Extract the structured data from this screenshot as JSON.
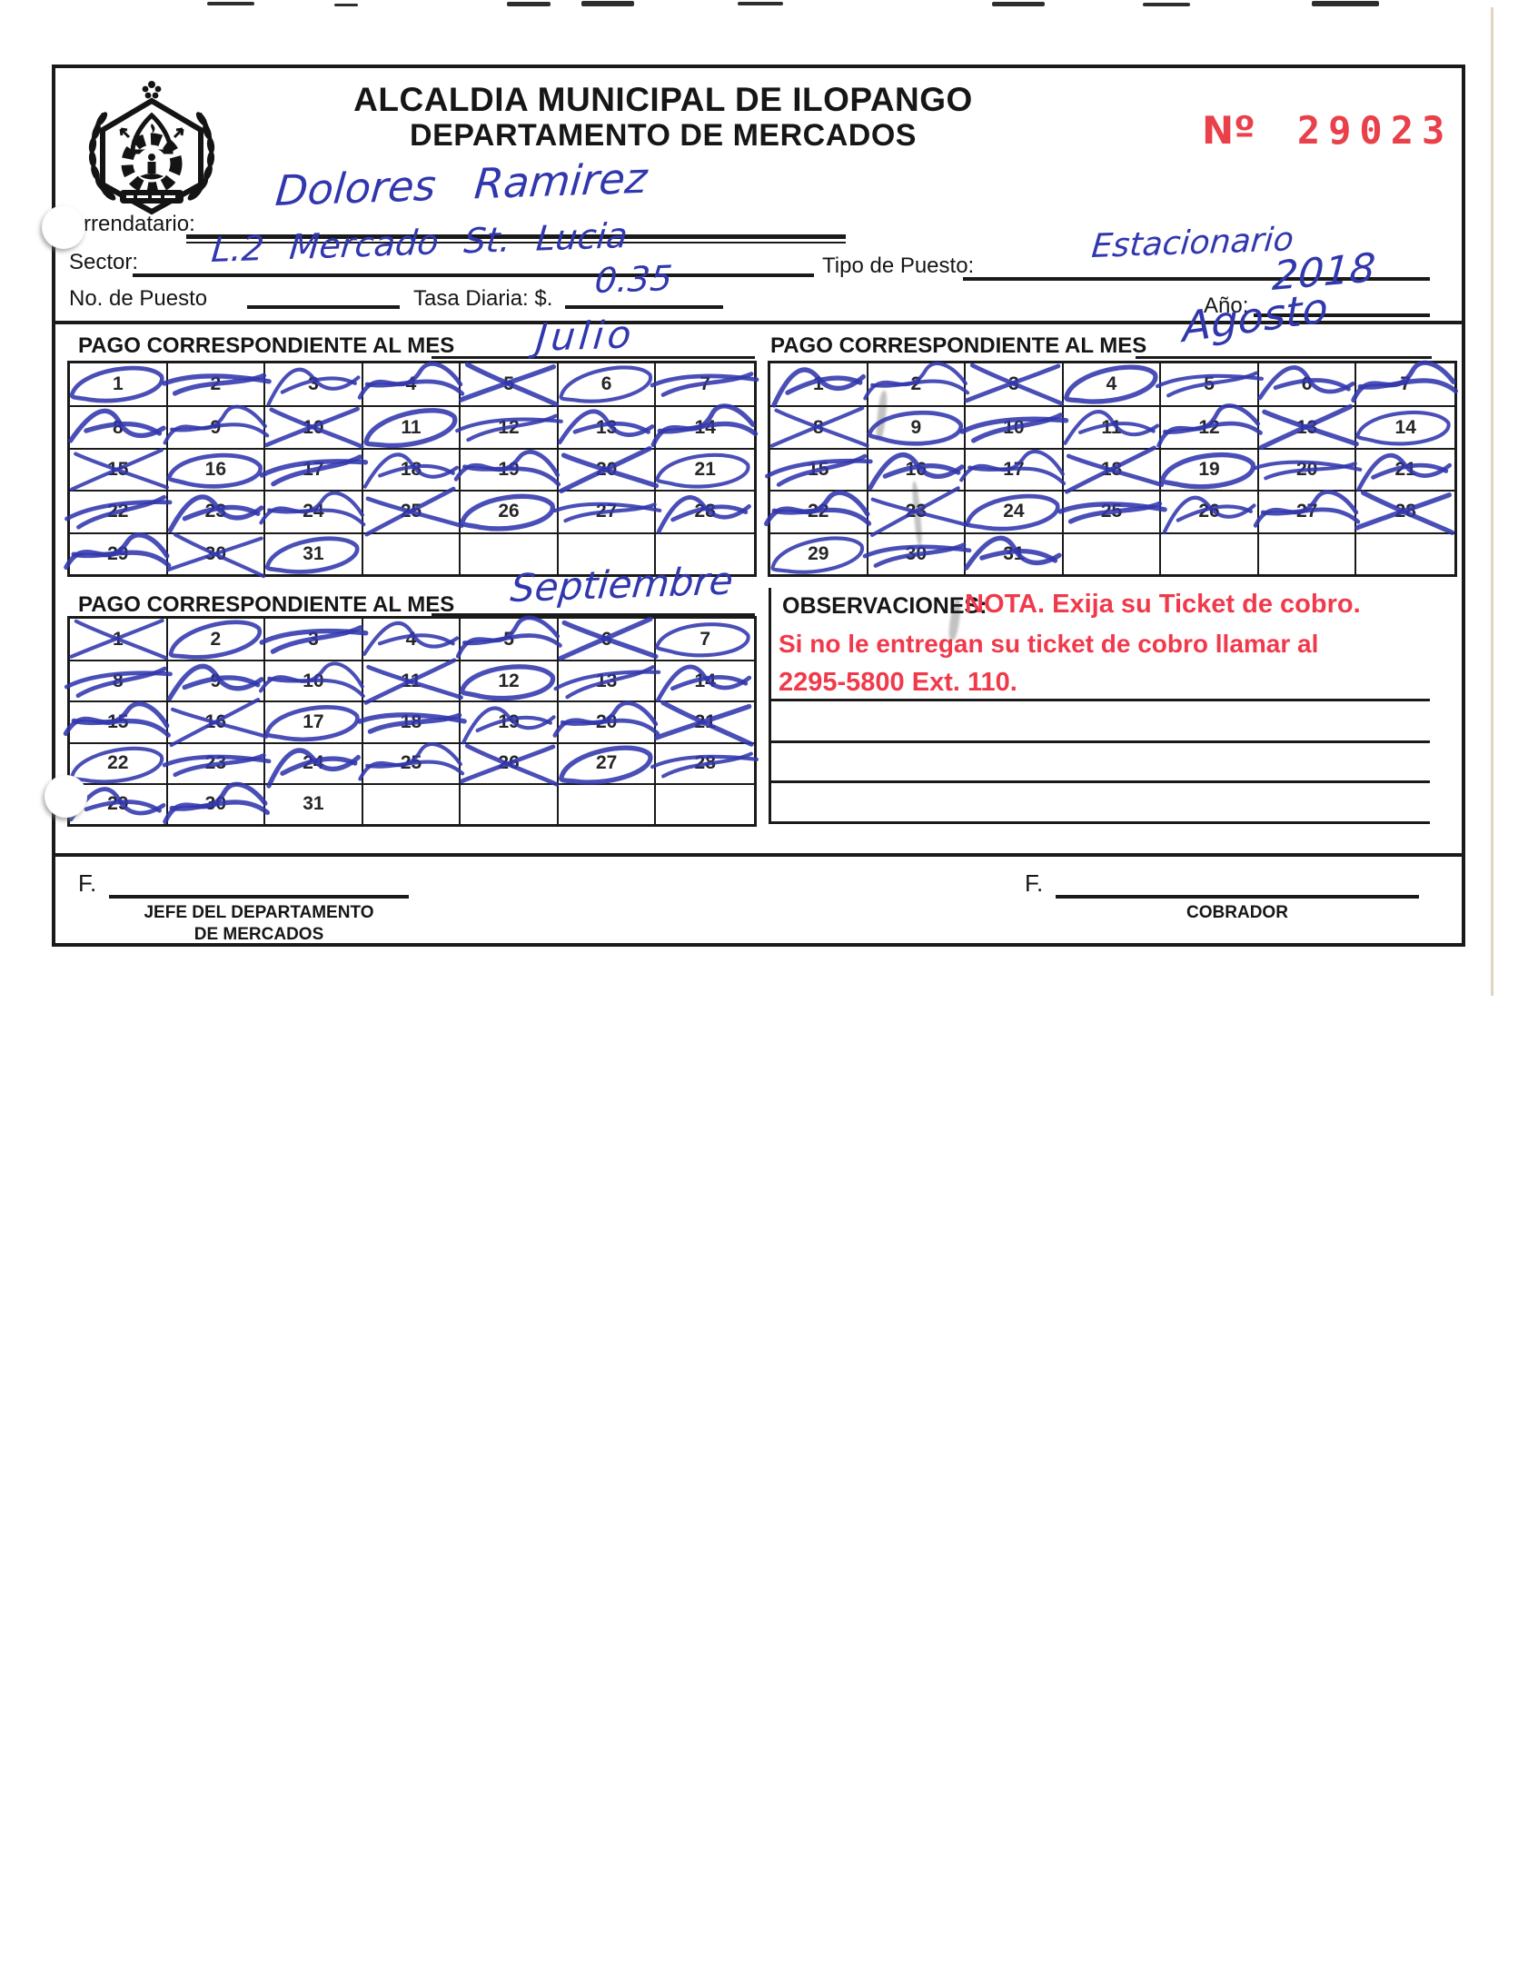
{
  "document": {
    "title_line1": "ALCALDIA MUNICIPAL DE ILOPANGO",
    "title_line2": "DEPARTAMENTO DE MERCADOS",
    "serial_prefix": "Nº",
    "serial_number": "29023"
  },
  "fields": {
    "arrendatario": {
      "label": "Arrendatario:",
      "value": "Dolores Ramirez"
    },
    "sector": {
      "label": "Sector:",
      "value": "L.2  Mercado  St. Lucia"
    },
    "tipo_puesto": {
      "label": "Tipo de Puesto:",
      "value": "Estacionario"
    },
    "no_puesto": {
      "label": "No. de Puesto",
      "value": ""
    },
    "tasa_diaria": {
      "label": "Tasa Diaria: $.",
      "value": "0.35"
    },
    "anio": {
      "label": "Año:",
      "value": "2018"
    }
  },
  "calendars": [
    {
      "name": "julio",
      "header_label": "PAGO CORRESPONDIENTE AL MES",
      "month_written": "Julio",
      "num_days": 31,
      "crossed_days": [
        1,
        2,
        3,
        4,
        5,
        6,
        7,
        8,
        9,
        10,
        11,
        12,
        13,
        14,
        15,
        16,
        17,
        18,
        19,
        20,
        21,
        22,
        23,
        24,
        25,
        26,
        27,
        28,
        29,
        30,
        31
      ]
    },
    {
      "name": "agosto",
      "header_label": "PAGO CORRESPONDIENTE AL MES",
      "month_written": "Agosto",
      "num_days": 31,
      "crossed_days": [
        1,
        2,
        3,
        4,
        5,
        6,
        7,
        8,
        9,
        10,
        11,
        12,
        13,
        14,
        15,
        16,
        17,
        18,
        19,
        20,
        21,
        22,
        23,
        24,
        25,
        26,
        27,
        28,
        29,
        30,
        31
      ]
    },
    {
      "name": "septiembre",
      "header_label": "PAGO CORRESPONDIENTE AL MES",
      "month_written": "Septiembre",
      "num_days": 31,
      "crossed_days": [
        1,
        2,
        3,
        4,
        5,
        6,
        7,
        8,
        9,
        10,
        11,
        12,
        13,
        14,
        15,
        16,
        17,
        18,
        19,
        20,
        21,
        22,
        23,
        24,
        25,
        26,
        27,
        28,
        29,
        30
      ]
    }
  ],
  "observaciones": {
    "label": "OBSERVACIONES:",
    "nota_line1": "NOTA. Exija su Ticket de cobro.",
    "nota_line2": "Si no le entregan su ticket de cobro llamar al",
    "nota_line3": "2295-5800 Ext. 110."
  },
  "signatures": {
    "left": {
      "prefix": "F.",
      "title_line1": "JEFE DEL DEPARTAMENTO",
      "title_line2": "DE MERCADOS"
    },
    "right": {
      "prefix": "F.",
      "title_line1": "COBRADOR",
      "title_line2": ""
    }
  },
  "colors": {
    "ink_blue": "#3137ad",
    "stamp_red": "#e9404a",
    "note_red": "#f03a4c"
  }
}
